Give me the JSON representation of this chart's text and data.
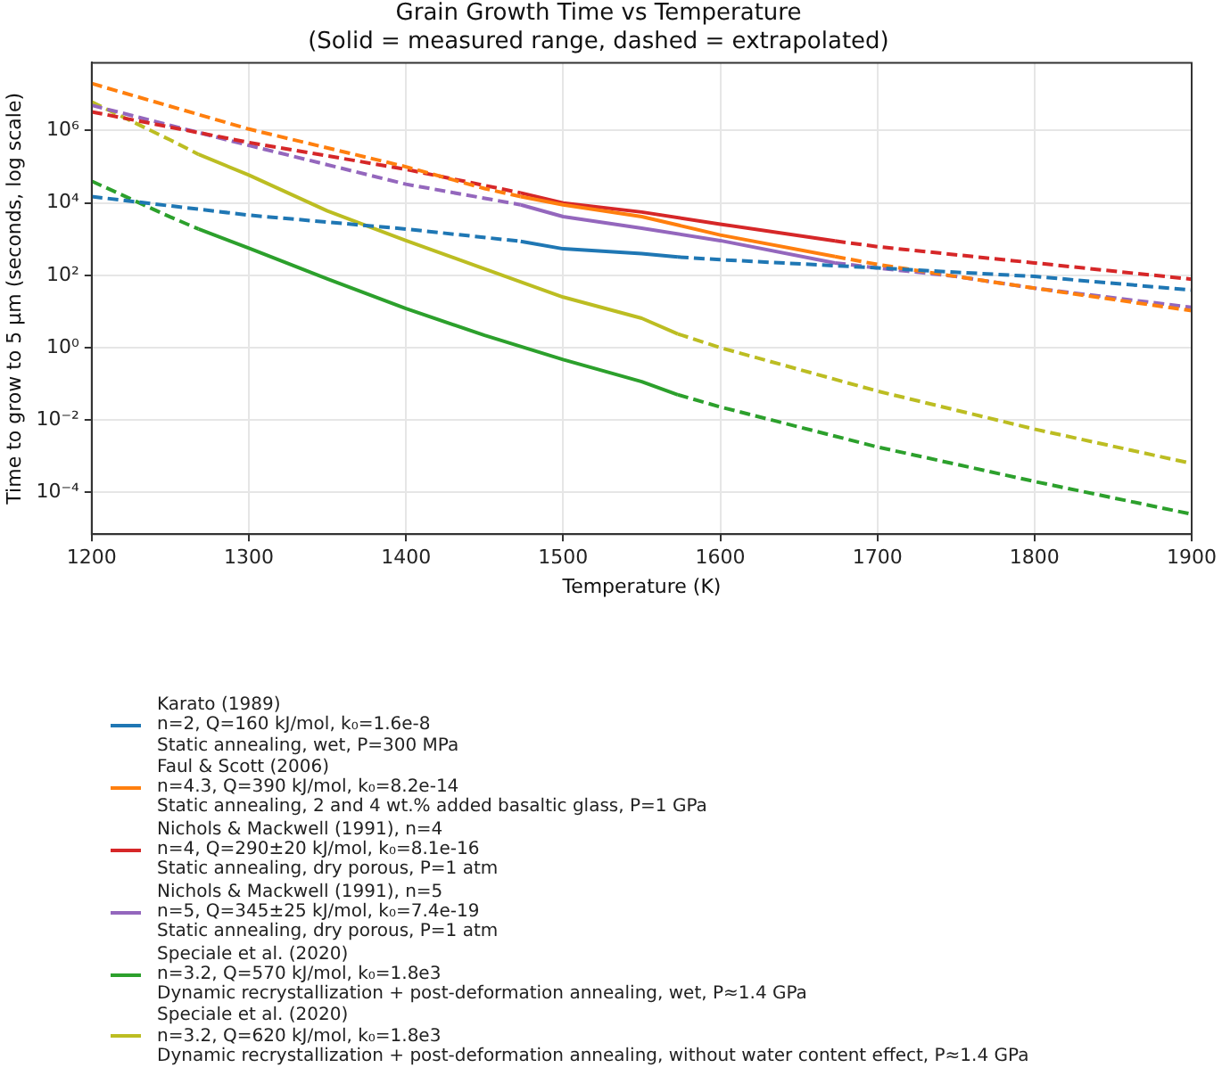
{
  "chart_data": {
    "type": "line",
    "title": "Grain Growth Time vs Temperature",
    "subtitle": "(Solid = measured range, dashed = extrapolated)",
    "xlabel": "Temperature (K)",
    "ylabel": "Time to grow to 5 μm (seconds, log scale)",
    "log": "y",
    "grid": true,
    "legend": "bottom",
    "marker": "none",
    "xlim": [
      1200,
      1900
    ],
    "xticks": [
      1200,
      1300,
      1400,
      1500,
      1600,
      1700,
      1800,
      1900
    ],
    "ylim": [
      7e-06,
      75000000.0
    ],
    "yticks": [
      {
        "value": 0.0001,
        "label": "10⁻⁴"
      },
      {
        "value": 0.01,
        "label": "10⁻²"
      },
      {
        "value": 1,
        "label": "10⁰"
      },
      {
        "value": 100,
        "label": "10²"
      },
      {
        "value": 10000,
        "label": "10⁴"
      },
      {
        "value": 1000000,
        "label": "10⁶"
      }
    ],
    "series": [
      {
        "name": "Karato (1989)\nn=2, Q=160 kJ/mol, k₀=1.6e-8\nStatic annealing, wet, P=300 MPa",
        "color": "#1f77b4",
        "line_style": "solid",
        "x": [
          1473,
          1500,
          1550,
          1573
        ],
        "values": [
          870,
          540,
          400,
          320
        ]
      },
      {
        "color": "#1f77b4",
        "line_style": "dashed",
        "x": [
          1200,
          1300,
          1400,
          1473
        ],
        "values": [
          15000,
          4600,
          1900,
          870
        ]
      },
      {
        "color": "#1f77b4",
        "line_style": "dashed",
        "x": [
          1573,
          1600,
          1700,
          1800,
          1900
        ],
        "values": [
          320,
          270,
          160,
          93,
          39
        ]
      },
      {
        "name": "Faul & Scott (2006)\nn=4.3, Q=390 kJ/mol, k₀=8.2e-14\nStatic annealing, 2 and 4 wt.% added basaltic glass, P=1 GPa",
        "color": "#ff7f0e",
        "line_style": "solid",
        "x": [
          1473,
          1500,
          1550,
          1600,
          1673
        ],
        "values": [
          15000,
          8900,
          4200,
          1300,
          330
        ]
      },
      {
        "color": "#ff7f0e",
        "line_style": "dashed",
        "x": [
          1200,
          1300,
          1400,
          1450,
          1473
        ],
        "values": [
          20000000,
          1100000,
          100000,
          25000,
          15000
        ]
      },
      {
        "color": "#ff7f0e",
        "line_style": "dashed",
        "x": [
          1673,
          1700,
          1750,
          1800,
          1900
        ],
        "values": [
          330,
          200,
          93,
          44,
          10.5
        ]
      },
      {
        "name": "Nichols & Mackwell (1991), n=4\nn=4, Q=290±20 kJ/mol, k₀=8.1e-16\nStatic annealing, dry porous, P=1 atm",
        "color": "#d62728",
        "line_style": "solid",
        "x": [
          1473,
          1500,
          1550,
          1600,
          1673
        ],
        "values": [
          19000,
          10000,
          5600,
          2600,
          890
        ]
      },
      {
        "color": "#d62728",
        "line_style": "dashed",
        "x": [
          1200,
          1300,
          1400,
          1473
        ],
        "values": [
          3300000,
          470000,
          85000,
          19000
        ]
      },
      {
        "color": "#d62728",
        "line_style": "dashed",
        "x": [
          1673,
          1700,
          1800,
          1900
        ],
        "values": [
          890,
          620,
          220,
          78
        ]
      },
      {
        "name": "Nichols & Mackwell (1991), n=5\nn=5, Q=345±25 kJ/mol, k₀=7.4e-19\nStatic annealing, dry porous, P=1 atm",
        "color": "#9467bd",
        "line_style": "solid",
        "x": [
          1473,
          1500,
          1550,
          1600,
          1673
        ],
        "values": [
          8900,
          4200,
          2000,
          910,
          220
        ]
      },
      {
        "color": "#9467bd",
        "line_style": "dashed",
        "x": [
          1200,
          1300,
          1400,
          1473
        ],
        "values": [
          5000000,
          390000,
          33000,
          8900
        ]
      },
      {
        "color": "#9467bd",
        "line_style": "dashed",
        "x": [
          1673,
          1700,
          1750,
          1800,
          1900
        ],
        "values": [
          220,
          160,
          93,
          44,
          13
        ]
      },
      {
        "name": "Speciale et al. (2020)\nn=3.2, Q=570 kJ/mol, k₀=1.8e3\nDynamic recrystallization + post-deformation annealing, wet, P≈1.4 GPa",
        "color": "#2ca02c",
        "line_style": "solid",
        "x": [
          1268,
          1300,
          1350,
          1400,
          1450,
          1500,
          1550,
          1573
        ],
        "values": [
          1900,
          560,
          80,
          12,
          2.2,
          0.47,
          0.115,
          0.05
        ]
      },
      {
        "color": "#2ca02c",
        "line_style": "dashed",
        "x": [
          1200,
          1250,
          1268
        ],
        "values": [
          40000,
          4100,
          1900
        ]
      },
      {
        "color": "#2ca02c",
        "line_style": "dashed",
        "x": [
          1573,
          1600,
          1700,
          1800,
          1900
        ],
        "values": [
          0.05,
          0.023,
          0.0018,
          0.0002,
          2.5e-05
        ]
      },
      {
        "name": "Speciale et al. (2020)\nn=3.2, Q=620 kJ/mol, k₀=1.8e3\nDynamic recrystallization + post-deformation annealing, without water content effect, P≈1.4 GPa",
        "color": "#bcbd22",
        "line_style": "solid",
        "x": [
          1268,
          1300,
          1350,
          1400,
          1450,
          1500,
          1550,
          1573
        ],
        "values": [
          220000,
          59000,
          6000,
          910,
          150,
          25,
          6.5,
          2.4
        ]
      },
      {
        "color": "#bcbd22",
        "line_style": "dashed",
        "x": [
          1200,
          1250,
          1268
        ],
        "values": [
          6200000,
          550000,
          220000
        ]
      },
      {
        "color": "#bcbd22",
        "line_style": "dashed",
        "x": [
          1573,
          1600,
          1700,
          1800,
          1900
        ],
        "values": [
          2.4,
          1.0,
          0.063,
          0.0056,
          0.00063
        ]
      }
    ]
  }
}
